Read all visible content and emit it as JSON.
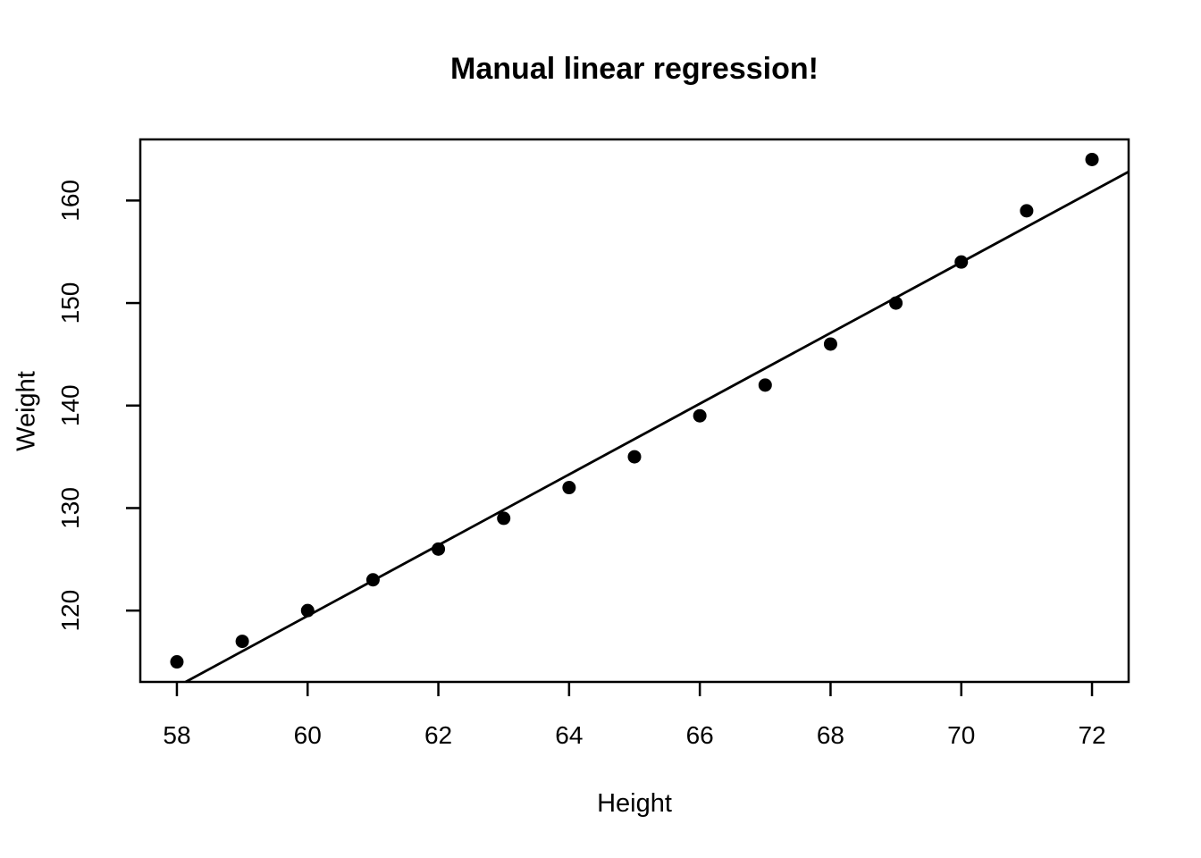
{
  "chart_data": {
    "type": "scatter",
    "title": "Manual linear regression!",
    "xlabel": "Height",
    "ylabel": "Weight",
    "x": [
      58,
      59,
      60,
      61,
      62,
      63,
      64,
      65,
      66,
      67,
      68,
      69,
      70,
      71,
      72
    ],
    "y": [
      115,
      117,
      120,
      123,
      126,
      129,
      132,
      135,
      139,
      142,
      146,
      150,
      154,
      159,
      164
    ],
    "fit_line": {
      "slope": 3.45,
      "intercept": -87.52
    },
    "x_ticks": [
      58,
      60,
      62,
      64,
      66,
      68,
      70,
      72
    ],
    "y_ticks": [
      120,
      130,
      140,
      150,
      160
    ],
    "xlim": [
      57.44,
      72.56
    ],
    "ylim": [
      113.04,
      165.96
    ],
    "grid": false,
    "legend": "none",
    "point_style": "filled-circle",
    "point_color": "#000000",
    "line_color": "#000000",
    "axis_color": "#000000",
    "background": "#ffffff"
  }
}
